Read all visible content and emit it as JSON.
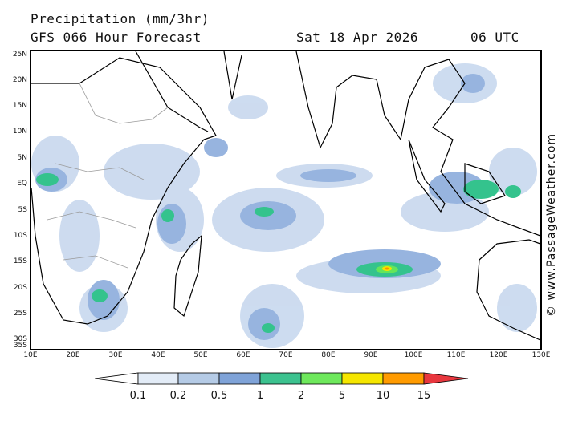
{
  "header": {
    "title": "Precipitation (mm/3hr)",
    "model": "GFS 066 Hour Forecast",
    "date": "Sat 18 Apr 2026",
    "time": "06 UTC"
  },
  "credit": "© www.PassageWeather.com",
  "axes": {
    "lat_labels": [
      "25N",
      "20N",
      "15N",
      "10N",
      "5N",
      "EQ",
      "5S",
      "10S",
      "15S",
      "20S",
      "25S",
      "30S",
      "35S"
    ],
    "lon_labels": [
      "10E",
      "20E",
      "30E",
      "40E",
      "50E",
      "60E",
      "70E",
      "80E",
      "90E",
      "100E",
      "110E",
      "120E",
      "130E"
    ],
    "lat_range": [
      -35,
      25
    ],
    "lon_range": [
      10,
      130
    ]
  },
  "legend": {
    "tick_labels": [
      "0.1",
      "0.2",
      "0.5",
      "1",
      "2",
      "5",
      "10",
      "15"
    ],
    "colors": [
      "#ffffff",
      "#e3ecf7",
      "#b5cbe6",
      "#7fa3d8",
      "#3cc28f",
      "#6ee85c",
      "#f5e600",
      "#ff9b00",
      "#e8373e"
    ]
  },
  "colors": {
    "light": "#c8d8ee",
    "mid": "#97b4df",
    "blue": "#7393d2",
    "teal": "#34c38d",
    "green": "#64e65a",
    "yellow": "#f2e400",
    "orange": "#ff9000"
  }
}
